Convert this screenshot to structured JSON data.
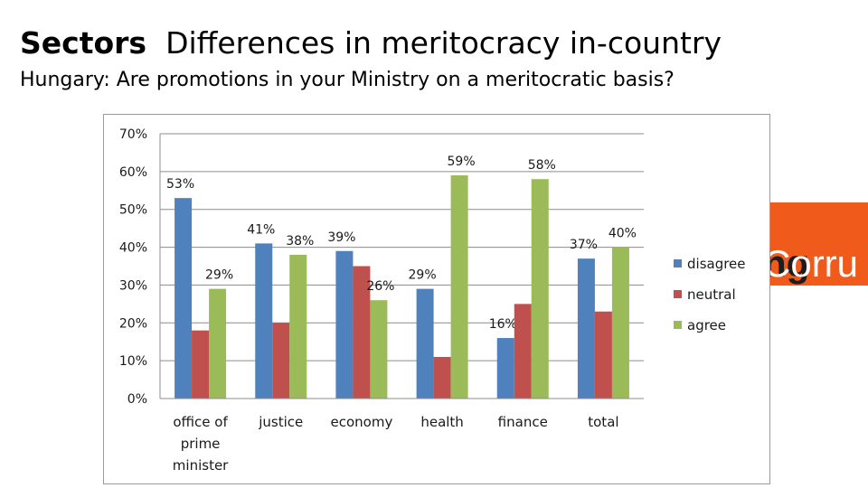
{
  "heading": {
    "bold": "Sectors",
    "rest": "Differences in meritocracy in-country"
  },
  "subtitle": "Hungary: Are promotions in your Ministry on a meritocratic basis?",
  "logo": {
    "dark_text": "ng",
    "light_text": "Corru"
  },
  "colors": {
    "disagree": "#4f81bd",
    "neutral": "#c0504d",
    "agree": "#9bbb59"
  },
  "chart_data": {
    "type": "bar",
    "title": "",
    "categories": [
      "office of prime minister",
      "justice",
      "economy",
      "health",
      "finance",
      "total"
    ],
    "category_lines": [
      [
        "office of",
        "prime",
        "minister"
      ],
      [
        "justice"
      ],
      [
        "economy"
      ],
      [
        "health"
      ],
      [
        "finance"
      ],
      [
        "total"
      ]
    ],
    "series": [
      {
        "name": "disagree",
        "values": [
          53,
          41,
          39,
          29,
          16,
          37
        ]
      },
      {
        "name": "neutral",
        "values": [
          18,
          20,
          35,
          11,
          25,
          23
        ]
      },
      {
        "name": "agree",
        "values": [
          29,
          38,
          26,
          59,
          58,
          40
        ]
      }
    ],
    "data_labels": {
      "disagree": [
        "53%",
        "41%",
        "39%",
        "29%",
        "16%",
        "37%"
      ],
      "agree": [
        "29%",
        "38%",
        "26%",
        "59%",
        "58%",
        "40%"
      ]
    },
    "ylim": [
      0,
      70
    ],
    "yticks": [
      0,
      10,
      20,
      30,
      40,
      50,
      60,
      70
    ],
    "ytick_labels": [
      "0%",
      "10%",
      "20%",
      "30%",
      "40%",
      "50%",
      "60%",
      "70%"
    ],
    "xlabel": "",
    "ylabel": "",
    "grid": true,
    "legend": [
      "disagree",
      "neutral",
      "agree"
    ],
    "legend_position": "right"
  }
}
